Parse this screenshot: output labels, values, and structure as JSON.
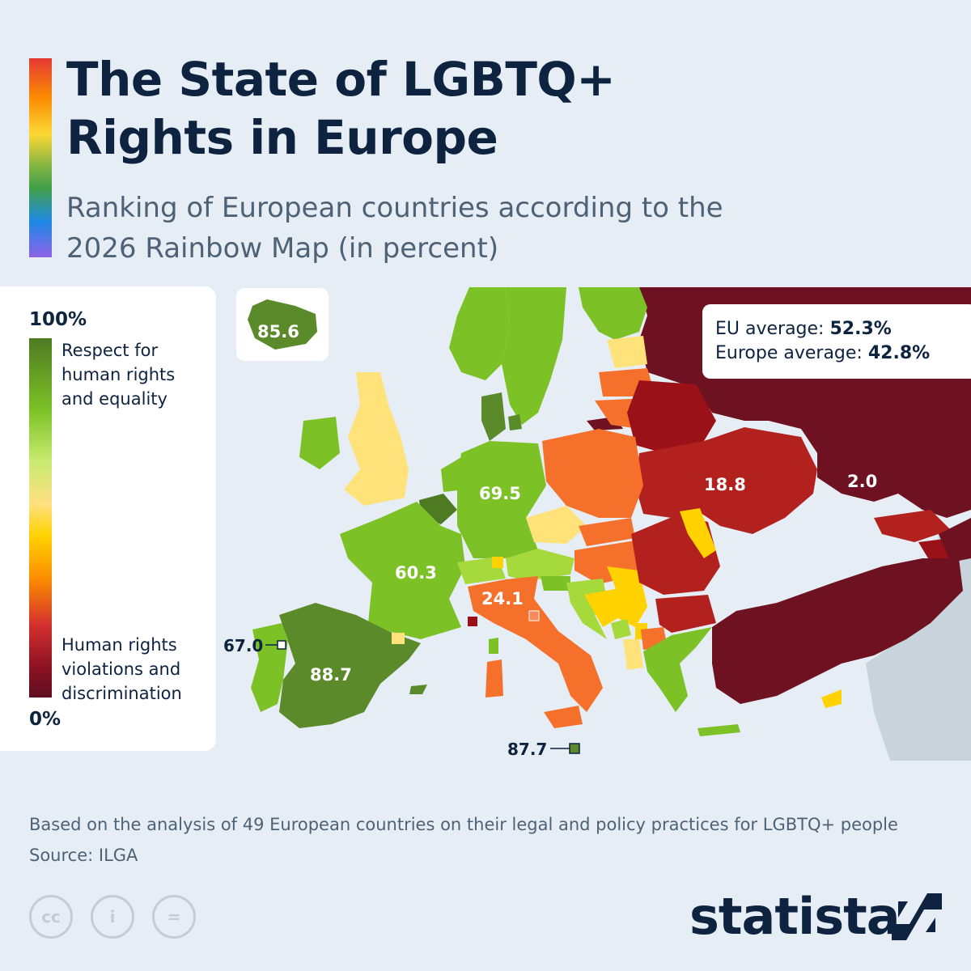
{
  "header": {
    "title": "The State of LGBTQ+ Rights in Europe",
    "subtitle": "Ranking of European countries according to the 2026 Rainbow Map (in percent)"
  },
  "legend": {
    "top_value": "100%",
    "bottom_value": "0%",
    "top_description": "Respect for human rights and equality",
    "bottom_description": "Human rights violations and discrimination",
    "colors": [
      "#4e7a22",
      "#7cc226",
      "#ffe082",
      "#ffd200",
      "#fb8c00",
      "#d32f2f",
      "#5e0f1f"
    ]
  },
  "averages": {
    "eu_label": "EU average:",
    "eu_value": "52.3%",
    "europe_label": "Europe average:",
    "europe_value": "42.8%"
  },
  "map_labels": {
    "iceland": "85.6",
    "spain": "88.7",
    "portugal": "67.0",
    "france": "60.3",
    "germany": "69.5",
    "italy": "24.1",
    "ukraine": "18.8",
    "russia": "2.0",
    "malta": "87.7"
  },
  "footer": {
    "note": "Based on the analysis of 49 European countries on their legal and policy practices for LGBTQ+ people",
    "source": "Source: ILGA",
    "brand": "statista",
    "license_icons": [
      "cc",
      "i",
      "="
    ]
  },
  "colors": {
    "dark_green": "#5a8a2a",
    "green": "#7cc226",
    "light_green": "#a6d93c",
    "pale_yellow": "#ffe27a",
    "yellow": "#ffd200",
    "orange": "#f5702b",
    "red_orange": "#e2452a",
    "red": "#b3211f",
    "dark_red": "#6e1120",
    "non_rated": "#c8d3dc"
  }
}
